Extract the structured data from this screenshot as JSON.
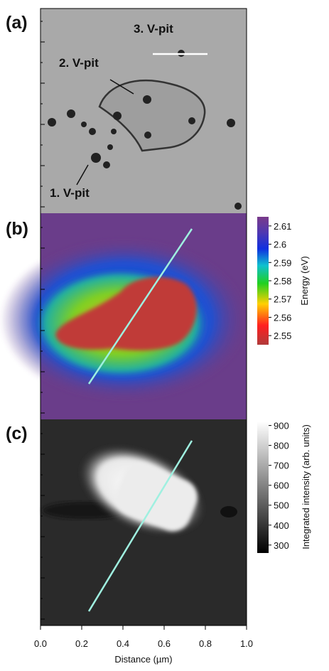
{
  "panels": [
    {
      "label": "(a)",
      "annotations": [
        "3. V-pit",
        "2. V-pit",
        "1. V-pit"
      ]
    },
    {
      "label": "(b)"
    },
    {
      "label": "(c)"
    }
  ],
  "colorbar_b": {
    "label": "Energy (eV)",
    "lim": [
      2.545,
      2.615
    ],
    "ticks": [
      2.55,
      2.56,
      2.57,
      2.58,
      2.59,
      2.6,
      2.61
    ]
  },
  "colorbar_c": {
    "label": "Integrated intensity (arb. units)",
    "lim": [
      260,
      920
    ],
    "ticks": [
      300,
      400,
      500,
      600,
      700,
      800,
      900
    ]
  },
  "x_axis": {
    "label": "Distance (µm)",
    "lim": [
      0,
      1
    ],
    "ticks": [
      {
        "value": 0,
        "label": "0.0"
      },
      0.2,
      0.4,
      0.6,
      0.8,
      {
        "value": 1,
        "label": "1.0"
      }
    ]
  }
}
